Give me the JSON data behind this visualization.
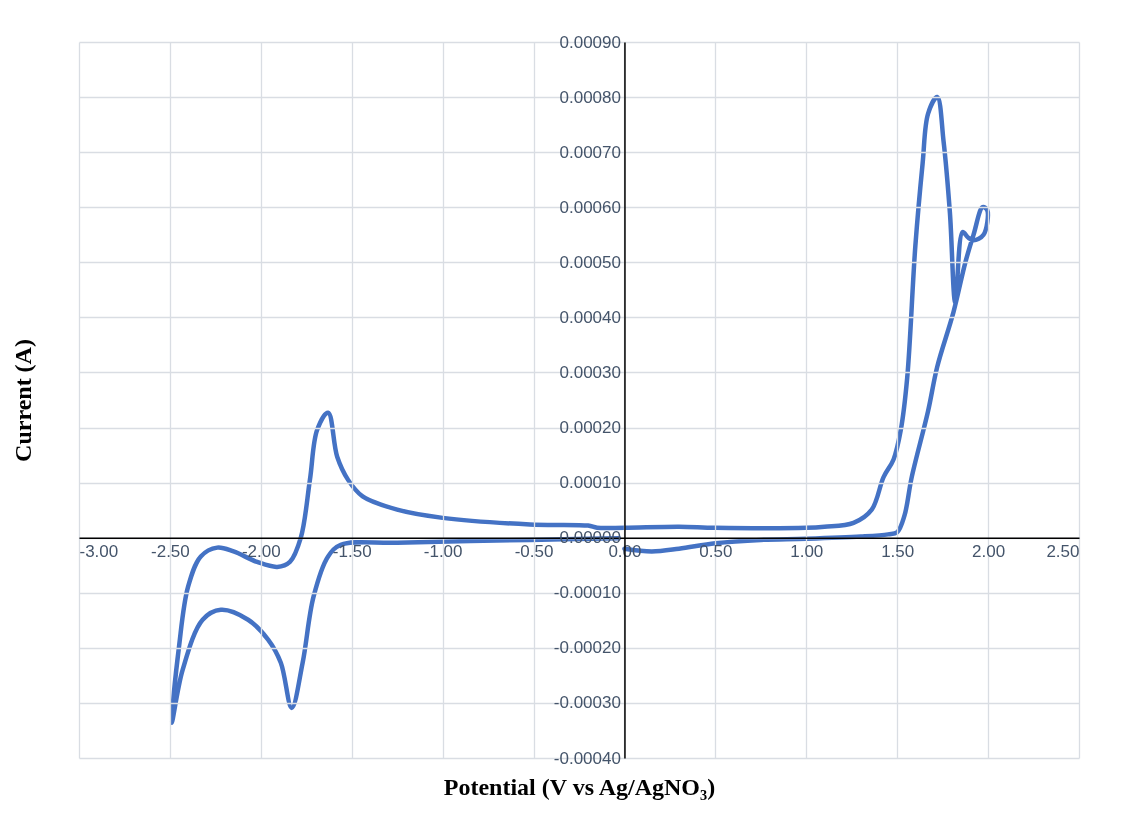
{
  "chart_data": {
    "type": "line",
    "xlabel": "Potential (V vs Ag/AgNO₃)",
    "ylabel": "Current (A)",
    "grid": true,
    "legend": false,
    "marker": "none",
    "line_style": "solid",
    "xlim": [
      -3,
      2.5
    ],
    "xticks": [
      {
        "value": -3,
        "label": "-3.00"
      },
      {
        "value": -2.5,
        "label": "-2.50"
      },
      {
        "value": -2,
        "label": "-2.00"
      },
      {
        "value": -1.5,
        "label": "-1.50"
      },
      {
        "value": -1,
        "label": "-1.00"
      },
      {
        "value": -0.5,
        "label": "-0.50"
      },
      {
        "value": 0,
        "label": "0.00"
      },
      {
        "value": 0.5,
        "label": "0.50"
      },
      {
        "value": 1,
        "label": "1.00"
      },
      {
        "value": 1.5,
        "label": "1.50"
      },
      {
        "value": 2,
        "label": "2.00"
      },
      {
        "value": 2.5,
        "label": "2.50"
      }
    ],
    "ylim": [
      -0.0004,
      0.0009
    ],
    "yticks": [
      {
        "value": -0.0004,
        "label": "-0.00040"
      },
      {
        "value": -0.0003,
        "label": "-0.00030"
      },
      {
        "value": -0.0002,
        "label": "-0.00020"
      },
      {
        "value": -0.0001,
        "label": "-0.00010"
      },
      {
        "value": 0,
        "label": "0.00000"
      },
      {
        "value": 0.0001,
        "label": "0.00010"
      },
      {
        "value": 0.0002,
        "label": "0.00020"
      },
      {
        "value": 0.0003,
        "label": "0.00030"
      },
      {
        "value": 0.0004,
        "label": "0.00040"
      },
      {
        "value": 0.0005,
        "label": "0.00050"
      },
      {
        "value": 0.0006,
        "label": "0.00060"
      },
      {
        "value": 0.0007,
        "label": "0.00070"
      },
      {
        "value": 0.0008,
        "label": "0.00080"
      },
      {
        "value": 0.0009,
        "label": "0.00090"
      }
    ],
    "x": [
      0.0,
      0.15,
      0.3,
      0.5,
      0.75,
      1.0,
      1.3,
      1.45,
      1.5,
      1.54,
      1.58,
      1.67,
      1.72,
      1.81,
      1.875,
      1.92,
      1.97,
      1.995,
      1.975,
      1.92,
      1.89,
      1.86,
      1.82,
      1.79,
      1.755,
      1.72,
      1.67,
      1.64,
      1.6,
      1.555,
      1.52,
      1.48,
      1.425,
      1.36,
      1.26,
      1.1,
      1.0,
      0.5,
      0.3,
      0.0,
      -0.15,
      -0.2,
      -0.52,
      -1.0,
      -1.25,
      -1.44,
      -1.52,
      -1.58,
      -1.63,
      -1.69,
      -1.73,
      -1.78,
      -1.84,
      -1.91,
      -2.02,
      -2.15,
      -2.24,
      -2.33,
      -2.4,
      -2.45,
      -2.49,
      -2.43,
      -2.32,
      -2.22,
      -2.07,
      -1.96,
      -1.89,
      -1.83,
      -1.77,
      -1.71,
      -1.63,
      -1.56,
      -1.25,
      -0.52,
      -0.03
    ],
    "values": [
      -2e-05,
      -2.5e-05,
      -2e-05,
      -1e-05,
      -4e-06,
      -2e-06,
      2e-06,
      6e-06,
      1e-05,
      4e-05,
      0.00011,
      0.00023,
      0.00031,
      0.00041,
      0.0005,
      0.00055,
      0.0006,
      0.000595,
      0.00055,
      0.00054,
      0.000545,
      0.000555,
      0.000426,
      0.00059,
      0.00072,
      0.0008,
      0.00077,
      0.00068,
      0.00053,
      0.00029,
      0.000196,
      0.000142,
      0.00011,
      5.1e-05,
      2.7e-05,
      2e-05,
      1.8e-05,
      1.8e-05,
      2e-05,
      1.8e-05,
      1.8e-05,
      2.2e-05,
      2.4e-05,
      3.6e-05,
      5.1e-05,
      7.5e-05,
      0.000105,
      0.000147,
      0.000227,
      0.000196,
      0.000105,
      0.0,
      -4.4e-05,
      -5.3e-05,
      -4.4e-05,
      -2.5e-05,
      -1.8e-05,
      -3.4e-05,
      -8.9e-05,
      -0.000198,
      -0.000336,
      -0.00024,
      -0.000149,
      -0.000131,
      -0.000149,
      -0.000185,
      -0.000227,
      -0.000309,
      -0.000227,
      -0.000107,
      -3.4e-05,
      -1.3e-05,
      -9e-06,
      -4e-06,
      -1e-06
    ],
    "color": "#4472c4"
  }
}
